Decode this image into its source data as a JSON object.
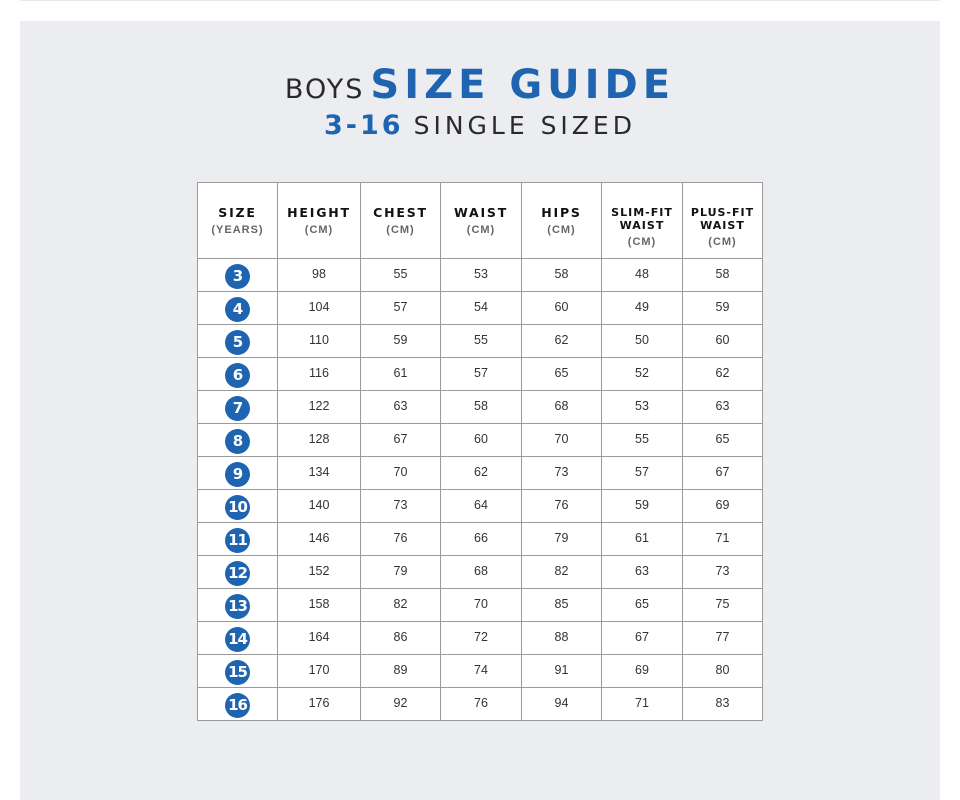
{
  "title": {
    "prefix": "BOYS",
    "main": "SIZE GUIDE",
    "range": "3-16",
    "subtitle": "SINGLE SIZED"
  },
  "colors": {
    "accent": "#1f64b0",
    "panel_bg": "#ebedf0"
  },
  "table": {
    "headers": [
      {
        "label_lines": [
          "SIZE"
        ],
        "unit": "(YEARS)"
      },
      {
        "label_lines": [
          "HEIGHT"
        ],
        "unit": "(CM)"
      },
      {
        "label_lines": [
          "CHEST"
        ],
        "unit": "(CM)"
      },
      {
        "label_lines": [
          "WAIST"
        ],
        "unit": "(CM)"
      },
      {
        "label_lines": [
          "HIPS"
        ],
        "unit": "(CM)"
      },
      {
        "label_lines": [
          "SLIM-FIT",
          "WAIST"
        ],
        "unit": "(CM)"
      },
      {
        "label_lines": [
          "PLUS-FIT",
          "WAIST"
        ],
        "unit": "(CM)"
      }
    ],
    "rows": [
      {
        "size": "3",
        "values": [
          "98",
          "55",
          "53",
          "58",
          "48",
          "58"
        ]
      },
      {
        "size": "4",
        "values": [
          "104",
          "57",
          "54",
          "60",
          "49",
          "59"
        ]
      },
      {
        "size": "5",
        "values": [
          "110",
          "59",
          "55",
          "62",
          "50",
          "60"
        ]
      },
      {
        "size": "6",
        "values": [
          "116",
          "61",
          "57",
          "65",
          "52",
          "62"
        ]
      },
      {
        "size": "7",
        "values": [
          "122",
          "63",
          "58",
          "68",
          "53",
          "63"
        ]
      },
      {
        "size": "8",
        "values": [
          "128",
          "67",
          "60",
          "70",
          "55",
          "65"
        ]
      },
      {
        "size": "9",
        "values": [
          "134",
          "70",
          "62",
          "73",
          "57",
          "67"
        ]
      },
      {
        "size": "10",
        "values": [
          "140",
          "73",
          "64",
          "76",
          "59",
          "69"
        ]
      },
      {
        "size": "11",
        "values": [
          "146",
          "76",
          "66",
          "79",
          "61",
          "71"
        ]
      },
      {
        "size": "12",
        "values": [
          "152",
          "79",
          "68",
          "82",
          "63",
          "73"
        ]
      },
      {
        "size": "13",
        "values": [
          "158",
          "82",
          "70",
          "85",
          "65",
          "75"
        ]
      },
      {
        "size": "14",
        "values": [
          "164",
          "86",
          "72",
          "88",
          "67",
          "77"
        ]
      },
      {
        "size": "15",
        "values": [
          "170",
          "89",
          "74",
          "91",
          "69",
          "80"
        ]
      },
      {
        "size": "16",
        "values": [
          "176",
          "92",
          "76",
          "94",
          "71",
          "83"
        ]
      }
    ]
  }
}
